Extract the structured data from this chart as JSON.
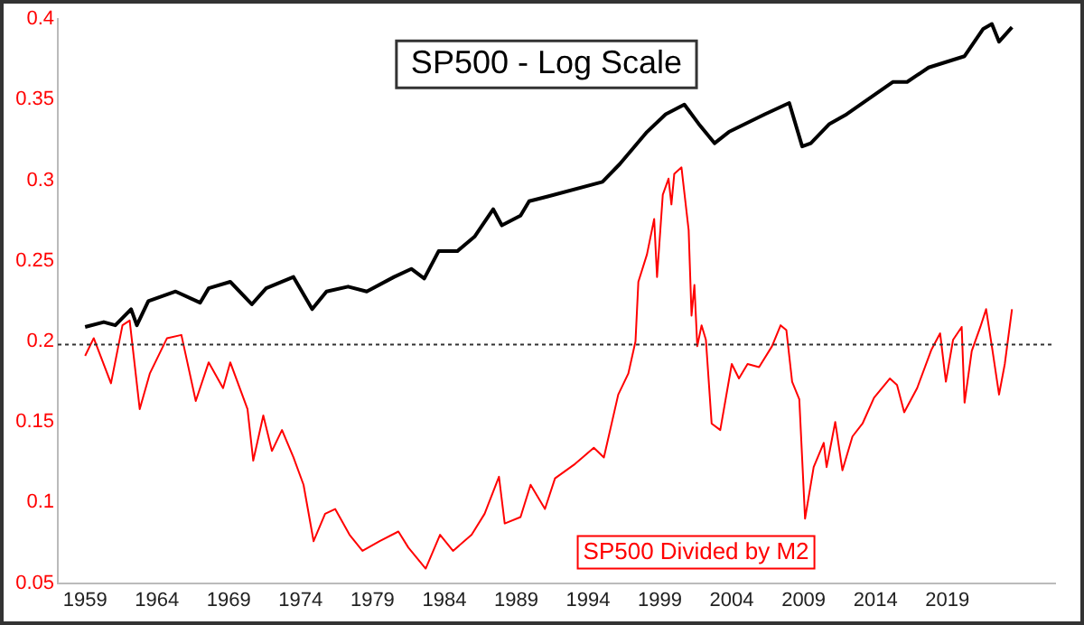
{
  "chart_data": {
    "type": "line",
    "title": "SP500 - Log Scale",
    "xlim": [
      1957.1,
      2026.5
    ],
    "xticks": [
      1959,
      1964,
      1969,
      1974,
      1979,
      1984,
      1989,
      1994,
      1999,
      2004,
      2009,
      2014,
      2019
    ],
    "ylim": [
      0.05,
      0.4
    ],
    "yticks": [
      0.05,
      0.1,
      0.15,
      0.2,
      0.25,
      0.3,
      0.35,
      0.4
    ],
    "grid": false,
    "legend": false,
    "marker": "none",
    "line_style": "solid",
    "ref_lines": [
      {
        "axis": "y",
        "value": 0.198,
        "color": "#333333",
        "line_style": "dotted"
      }
    ],
    "series": [
      {
        "color": "#000000",
        "x": [
          1959.0,
          1960.3,
          1961.1,
          1962.2,
          1962.6,
          1963.4,
          1965.3,
          1967.0,
          1967.6,
          1969.1,
          1970.6,
          1971.6,
          1973.5,
          1974.8,
          1975.8,
          1977.3,
          1978.6,
          1980.5,
          1981.7,
          1982.6,
          1983.6,
          1984.9,
          1986.1,
          1987.4,
          1988.0,
          1989.3,
          1989.9,
          1991.2,
          1995.0,
          1996.2,
          1998.1,
          1999.4,
          2000.7,
          2001.7,
          2002.8,
          2003.8,
          2006.3,
          2008.0,
          2008.9,
          2009.5,
          2010.8,
          2012.0,
          2015.2,
          2016.2,
          2017.7,
          2020.2,
          2021.5,
          2022.1,
          2022.6,
          2023.5
        ],
        "values": [
          0.209,
          0.212,
          0.21,
          0.22,
          0.21,
          0.225,
          0.231,
          0.224,
          0.233,
          0.237,
          0.223,
          0.233,
          0.24,
          0.22,
          0.231,
          0.234,
          0.231,
          0.24,
          0.245,
          0.239,
          0.256,
          0.256,
          0.265,
          0.282,
          0.272,
          0.278,
          0.287,
          0.29,
          0.299,
          0.31,
          0.33,
          0.341,
          0.347,
          0.335,
          0.323,
          0.33,
          0.341,
          0.348,
          0.321,
          0.323,
          0.335,
          0.341,
          0.361,
          0.361,
          0.37,
          0.377,
          0.394,
          0.397,
          0.386,
          0.395
        ]
      },
      {
        "name": "SP500 Divided by M2",
        "color": "#ff0000",
        "x": [
          1959.0,
          1959.6,
          1960.8,
          1961.6,
          1962.1,
          1962.8,
          1963.5,
          1964.7,
          1965.7,
          1966.7,
          1967.6,
          1968.6,
          1969.1,
          1970.3,
          1970.7,
          1971.4,
          1972.0,
          1972.7,
          1973.5,
          1974.2,
          1974.9,
          1975.7,
          1976.4,
          1977.4,
          1978.3,
          1979.5,
          1980.8,
          1981.5,
          1982.7,
          1983.7,
          1984.6,
          1985.9,
          1986.8,
          1987.8,
          1988.2,
          1989.3,
          1990.0,
          1991.0,
          1991.7,
          1993.1,
          1994.4,
          1995.1,
          1996.1,
          1996.8,
          1997.3,
          1997.5,
          1998.1,
          1998.6,
          1998.8,
          1999.2,
          1999.6,
          1999.8,
          2000.0,
          2000.5,
          2001.0,
          2001.2,
          2001.4,
          2001.6,
          2001.9,
          2002.2,
          2002.6,
          2003.2,
          2004.0,
          2004.5,
          2005.1,
          2005.9,
          2006.8,
          2007.4,
          2007.8,
          2008.2,
          2008.7,
          2009.1,
          2009.7,
          2010.4,
          2010.6,
          2011.2,
          2011.7,
          2012.4,
          2013.1,
          2013.9,
          2015.0,
          2015.5,
          2016.0,
          2016.9,
          2017.9,
          2018.5,
          2018.9,
          2019.4,
          2020.0,
          2020.2,
          2020.7,
          2021.3,
          2021.7,
          2022.1,
          2022.6,
          2023.0,
          2023.5
        ],
        "values": [
          0.191,
          0.202,
          0.174,
          0.21,
          0.213,
          0.158,
          0.18,
          0.202,
          0.204,
          0.163,
          0.187,
          0.171,
          0.187,
          0.158,
          0.126,
          0.154,
          0.132,
          0.145,
          0.128,
          0.111,
          0.076,
          0.093,
          0.096,
          0.08,
          0.07,
          0.076,
          0.082,
          0.072,
          0.059,
          0.08,
          0.07,
          0.08,
          0.093,
          0.116,
          0.087,
          0.091,
          0.111,
          0.096,
          0.115,
          0.124,
          0.134,
          0.128,
          0.167,
          0.18,
          0.2,
          0.237,
          0.254,
          0.276,
          0.24,
          0.291,
          0.301,
          0.285,
          0.304,
          0.308,
          0.269,
          0.216,
          0.235,
          0.197,
          0.21,
          0.201,
          0.149,
          0.145,
          0.186,
          0.177,
          0.186,
          0.184,
          0.197,
          0.21,
          0.207,
          0.175,
          0.164,
          0.09,
          0.122,
          0.137,
          0.122,
          0.15,
          0.12,
          0.141,
          0.149,
          0.165,
          0.177,
          0.173,
          0.156,
          0.171,
          0.195,
          0.205,
          0.175,
          0.201,
          0.209,
          0.162,
          0.194,
          0.209,
          0.22,
          0.197,
          0.167,
          0.186,
          0.22
        ]
      }
    ]
  }
}
